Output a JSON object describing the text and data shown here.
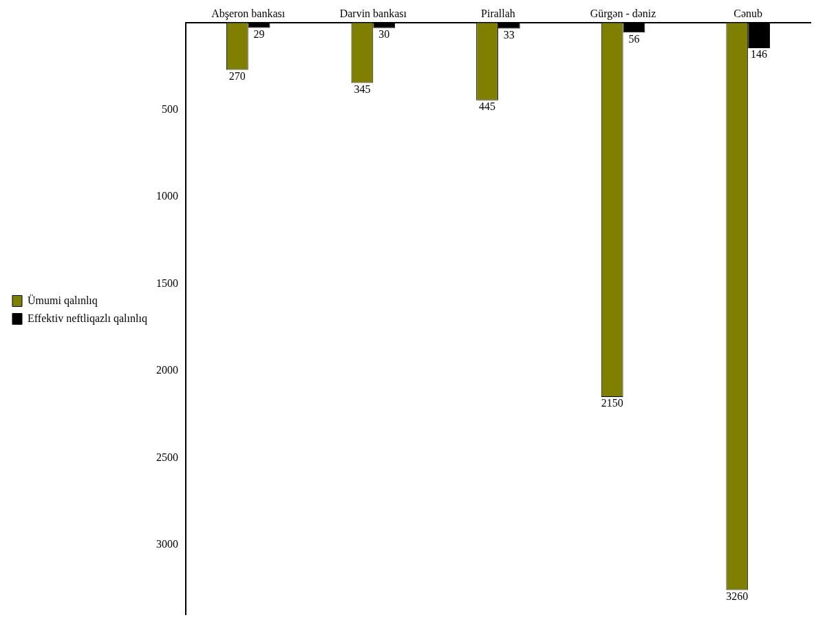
{
  "chart_data": {
    "type": "bar",
    "categories": [
      "Abşeron bankası",
      "Darvin bankası",
      "Pirallah",
      "Gürgən - dəniz",
      "Cənub"
    ],
    "series": [
      {
        "name": "Ümumi qalınlıq",
        "color": "#808000",
        "values": [
          270,
          345,
          445,
          2150,
          3260
        ]
      },
      {
        "name": "Effektiv neftliqazlı qalınlıq",
        "color": "#000000",
        "values": [
          29,
          30,
          33,
          56,
          146
        ]
      }
    ],
    "ylim": [
      3400,
      0
    ],
    "yticks": [
      500,
      1000,
      1500,
      2000,
      2500,
      3000
    ],
    "grid": false,
    "legend": "left",
    "data_labels": true
  }
}
